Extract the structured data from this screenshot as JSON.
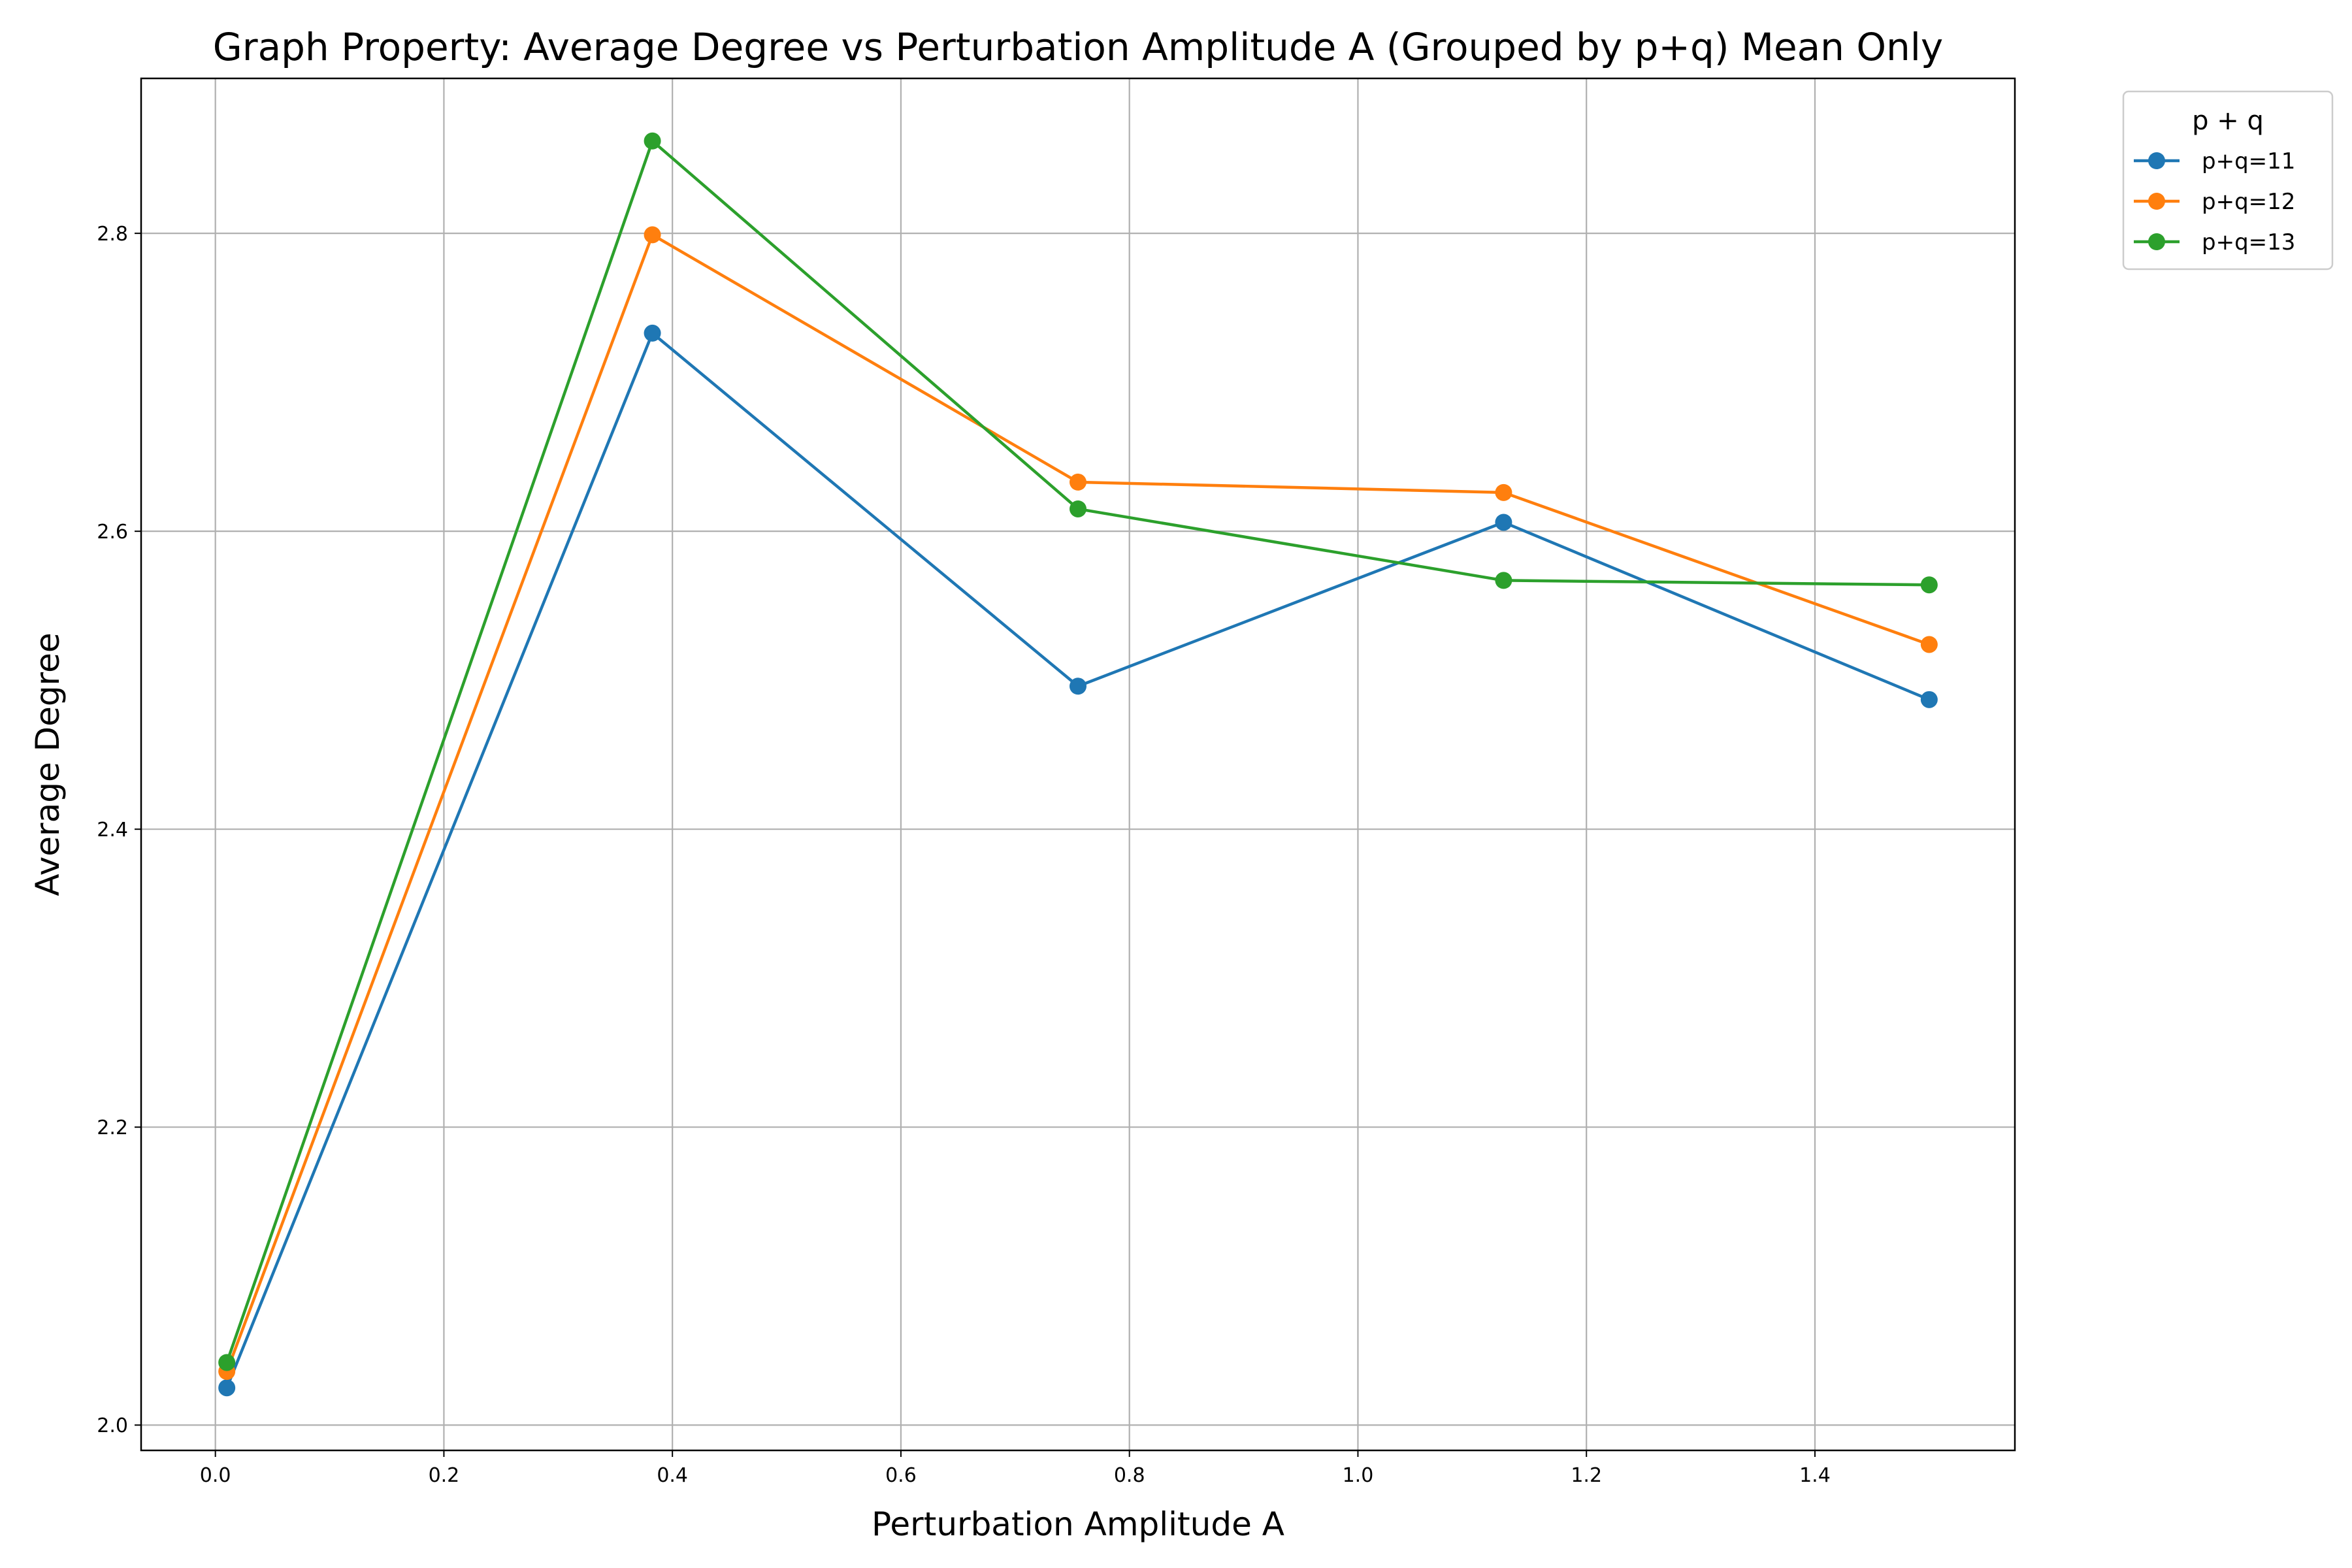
{
  "chart_data": {
    "type": "line",
    "title": "Graph Property: Average Degree vs Perturbation Amplitude A (Grouped by p+q) Mean Only",
    "xlabel": "Perturbation Amplitude A",
    "ylabel": "Average Degree",
    "xlim": [
      -0.065,
      1.575
    ],
    "ylim": [
      1.983,
      2.904
    ],
    "xticks": [
      0.0,
      0.2,
      0.4,
      0.6,
      0.8,
      1.0,
      1.2,
      1.4
    ],
    "xtick_labels": [
      "0.0",
      "0.2",
      "0.4",
      "0.6",
      "0.8",
      "1.0",
      "1.2",
      "1.4"
    ],
    "yticks": [
      2.0,
      2.2,
      2.4,
      2.6,
      2.8
    ],
    "ytick_labels": [
      "2.0",
      "2.2",
      "2.4",
      "2.6",
      "2.8"
    ],
    "grid": true,
    "legend_title": "p + q",
    "legend_placement": "outside-top-right",
    "x": [
      0.01,
      0.3825,
      0.755,
      1.1275,
      1.5
    ],
    "series": [
      {
        "name": "p+q=11",
        "color": "#1f77b4",
        "values": [
          2.025,
          2.733,
          2.496,
          2.606,
          2.487
        ]
      },
      {
        "name": "p+q=12",
        "color": "#ff7f0e",
        "values": [
          2.036,
          2.799,
          2.633,
          2.626,
          2.524
        ]
      },
      {
        "name": "p+q=13",
        "color": "#2ca02c",
        "values": [
          2.042,
          2.862,
          2.615,
          2.567,
          2.564
        ]
      }
    ]
  }
}
